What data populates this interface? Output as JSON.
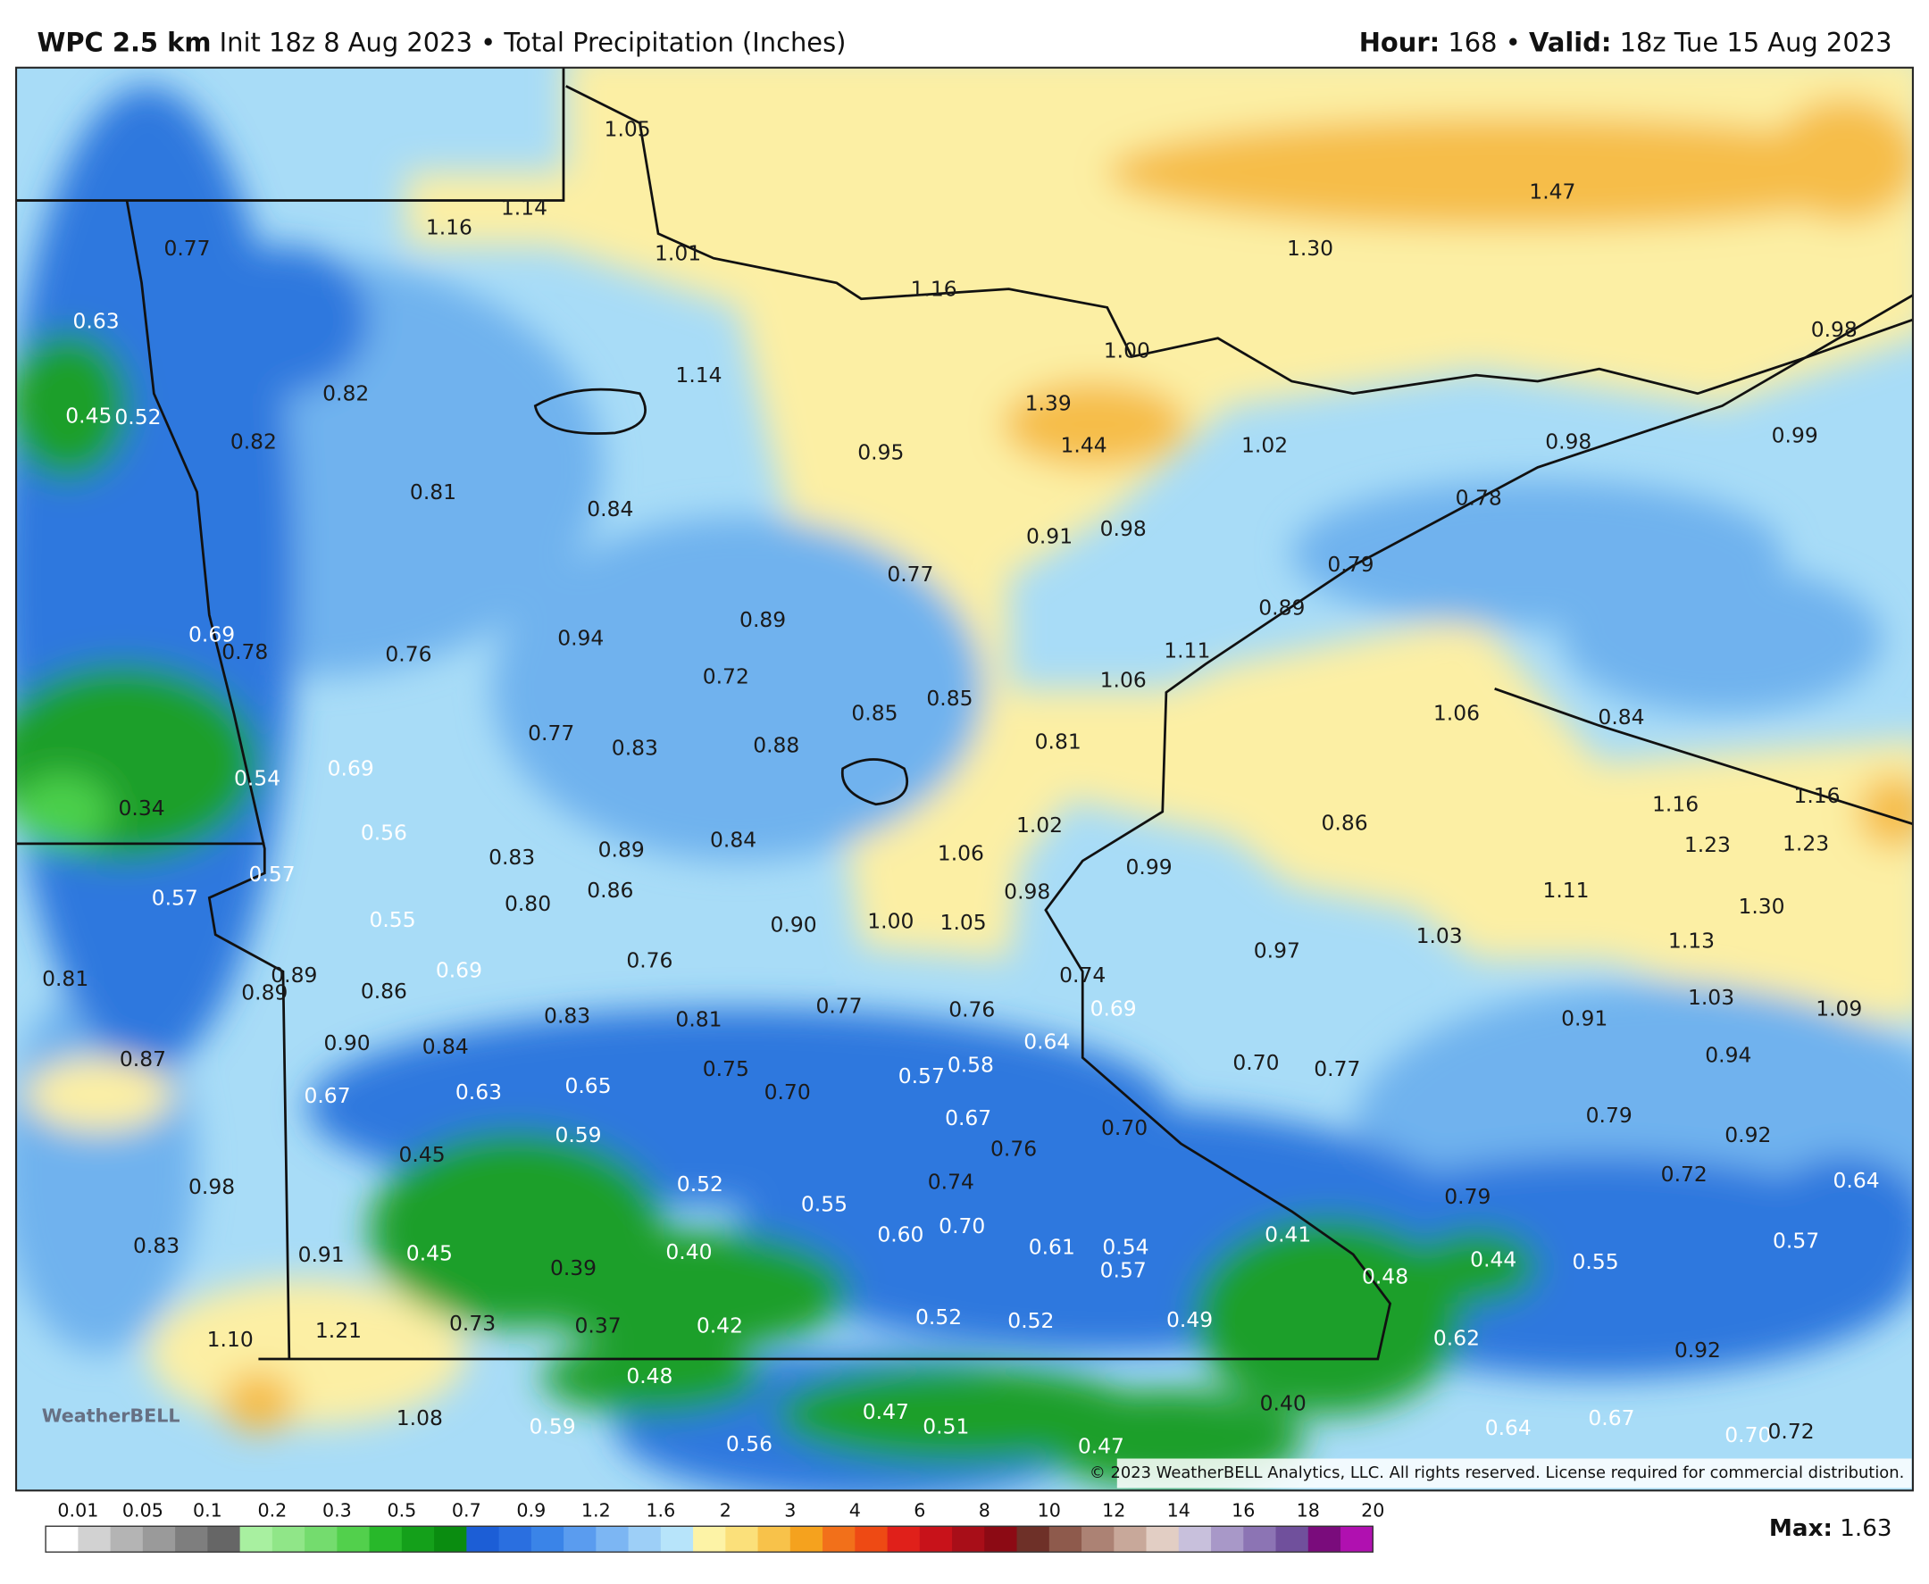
{
  "header": {
    "model": "WPC 2.5 km",
    "description": "Init 18z 8 Aug 2023 • Total Precipitation (Inches)",
    "hour_label": "Hour:",
    "hour": "168",
    "separator": "•",
    "valid_label": "Valid:",
    "valid": "18z Tue 15 Aug 2023"
  },
  "map": {
    "labels": [
      "0.77",
      "0.63",
      "0.45",
      "0.52",
      "1.16",
      "1.14",
      "1.05",
      "1.01",
      "1.16",
      "1.47",
      "1.30",
      "0.98",
      "1.00",
      "1.14",
      "0.82",
      "0.82",
      "1.39",
      "1.44",
      "0.95",
      "1.02",
      "0.98",
      "0.99",
      "0.81",
      "0.84",
      "0.78",
      "0.91",
      "0.98",
      "0.77",
      "0.79",
      "0.89",
      "0.89",
      "0.69",
      "0.78",
      "0.94",
      "0.76",
      "1.11",
      "0.72",
      "1.06",
      "0.85",
      "0.85",
      "1.06",
      "0.84",
      "0.77",
      "0.83",
      "0.88",
      "0.81",
      "0.54",
      "0.69",
      "0.34",
      "1.16",
      "1.16",
      "0.56",
      "1.02",
      "0.86",
      "1.23",
      "1.23",
      "0.57",
      "0.83",
      "0.89",
      "0.84",
      "1.06",
      "0.99",
      "0.57",
      "0.86",
      "0.80",
      "0.98",
      "1.11",
      "1.30",
      "0.55",
      "0.90",
      "1.00",
      "1.05",
      "1.03",
      "0.97",
      "1.13",
      "0.81",
      "0.89",
      "0.89",
      "0.69",
      "0.76",
      "0.74",
      "0.86",
      "1.03",
      "0.69",
      "0.77",
      "0.76",
      "1.09",
      "0.83",
      "0.81",
      "0.91",
      "0.90",
      "0.84",
      "0.64",
      "0.87",
      "0.94",
      "0.70",
      "0.77",
      "0.75",
      "0.58",
      "0.57",
      "0.65",
      "0.70",
      "0.67",
      "0.63",
      "0.67",
      "0.79",
      "0.70",
      "0.59",
      "0.92",
      "0.76",
      "0.45",
      "0.72",
      "0.64",
      "0.98",
      "0.52",
      "0.74",
      "0.79",
      "0.55",
      "0.60",
      "0.70",
      "0.41",
      "0.83",
      "0.91",
      "0.45",
      "0.40",
      "0.39",
      "0.61",
      "0.54",
      "0.57",
      "0.44",
      "0.55",
      "0.57",
      "0.48",
      "0.73",
      "0.37",
      "0.42",
      "0.52",
      "0.52",
      "0.49",
      "1.10",
      "1.21",
      "0.62",
      "0.92",
      "0.48",
      "0.40",
      "0.47",
      "1.08",
      "0.59",
      "0.51",
      "0.56",
      "0.47",
      "0.64",
      "0.67",
      "0.70",
      "0.72"
    ],
    "copyright": "© 2023 WeatherBELL Analytics, LLC. All rights reserved. License required for commercial distribution.",
    "logo": "WeatherBELL"
  },
  "colorbar": {
    "labels": [
      "0.01",
      "0.05",
      "0.1",
      "0.2",
      "0.3",
      "0.5",
      "0.7",
      "0.9",
      "1.2",
      "1.6",
      "2",
      "3",
      "4",
      "6",
      "8",
      "10",
      "12",
      "14",
      "16",
      "18",
      "20"
    ],
    "colors": [
      "#ffffff",
      "#d2d2d2",
      "#b4b4b4",
      "#9a9a9a",
      "#7e7e7e",
      "#666666",
      "#a8f0a0",
      "#90e688",
      "#74dc6e",
      "#52d04c",
      "#28b82a",
      "#14a01a",
      "#0a8c10",
      "#1c5ed6",
      "#2a6fe0",
      "#3a84e8",
      "#5a9cef",
      "#7cb6f3",
      "#9dcff7",
      "#b7e4fa",
      "#fdf3a6",
      "#fbe07a",
      "#f8c24a",
      "#f5a21e",
      "#f2701a",
      "#ee4a14",
      "#e0201a",
      "#c8121a",
      "#a80e18",
      "#8c0a14",
      "#6e3028",
      "#8e5a4c",
      "#ac8274",
      "#c8a89a",
      "#e2cec4",
      "#c8c0dc",
      "#a898c8",
      "#8c74b4",
      "#70509c",
      "#7a0c7c",
      "#b010b0"
    ],
    "max_label": "Max:",
    "max": "1.63"
  }
}
